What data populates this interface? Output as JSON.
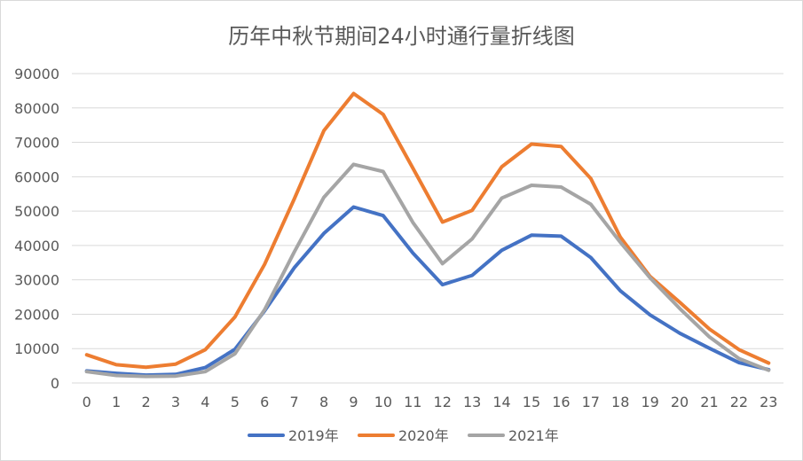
{
  "chart_data": {
    "type": "line",
    "title": "历年中秋节期间24小时通行量折线图",
    "x": [
      "0",
      "1",
      "2",
      "3",
      "4",
      "5",
      "6",
      "7",
      "8",
      "9",
      "10",
      "11",
      "12",
      "13",
      "14",
      "15",
      "16",
      "17",
      "18",
      "19",
      "20",
      "21",
      "22",
      "23"
    ],
    "ylim": [
      0,
      90000
    ],
    "yticks": [
      "0",
      "10000",
      "20000",
      "30000",
      "40000",
      "50000",
      "60000",
      "70000",
      "80000",
      "90000"
    ],
    "grid": true,
    "legend": "bottom",
    "series": [
      {
        "name": "2019年",
        "color": "#4472c4",
        "values": [
          3500,
          2800,
          2300,
          2500,
          4500,
          9800,
          21000,
          33500,
          43500,
          51200,
          48700,
          37800,
          28600,
          31300,
          38600,
          43000,
          42700,
          36500,
          26800,
          19800,
          14500,
          10100,
          5900,
          3900
        ]
      },
      {
        "name": "2020年",
        "color": "#ed7d31",
        "values": [
          8200,
          5300,
          4600,
          5500,
          9700,
          19200,
          34500,
          53500,
          73400,
          84200,
          78100,
          62500,
          46800,
          50200,
          62900,
          69500,
          68800,
          59500,
          42400,
          31000,
          23500,
          15700,
          9700,
          5800
        ]
      },
      {
        "name": "2021年",
        "color": "#a5a5a5",
        "values": [
          3300,
          2200,
          1900,
          2000,
          3300,
          8500,
          21300,
          38100,
          54000,
          63600,
          61500,
          46700,
          34700,
          41900,
          53800,
          57500,
          57000,
          52000,
          40900,
          30600,
          21700,
          13400,
          7100,
          3700
        ]
      }
    ]
  }
}
